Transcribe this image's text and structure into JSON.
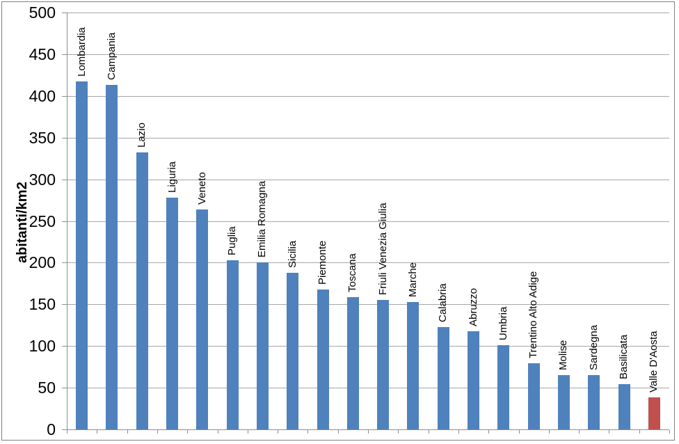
{
  "chart_data": {
    "type": "bar",
    "title": "",
    "xlabel": "",
    "ylabel": "abitanti/km2",
    "ylim": [
      0,
      500
    ],
    "ytick_step": 50,
    "yticks": [
      0,
      50,
      100,
      150,
      200,
      250,
      300,
      350,
      400,
      450,
      500
    ],
    "grid": true,
    "legend_position": "none",
    "categories": [
      "Lombardia",
      "Campania",
      "Lazio",
      "Liguria",
      "Veneto",
      "Puglia",
      "Emilia Romagna",
      "Sicilia",
      "Piemonte",
      "Toscana",
      "Friuli Venezia Giulia",
      "Marche",
      "Calabria",
      "Abruzzo",
      "Umbria",
      "Trentino Alto Adige",
      "Molise",
      "Sardegna",
      "Basilicata",
      "Valle D'Aosta"
    ],
    "values": [
      417,
      413,
      332,
      278,
      264,
      203,
      200,
      188,
      168,
      159,
      155,
      153,
      123,
      118,
      101,
      79,
      65,
      65,
      54,
      38
    ],
    "bar_colors": [
      "#4F81BD",
      "#4F81BD",
      "#4F81BD",
      "#4F81BD",
      "#4F81BD",
      "#4F81BD",
      "#4F81BD",
      "#4F81BD",
      "#4F81BD",
      "#4F81BD",
      "#4F81BD",
      "#4F81BD",
      "#4F81BD",
      "#4F81BD",
      "#4F81BD",
      "#4F81BD",
      "#4F81BD",
      "#4F81BD",
      "#4F81BD",
      "#C0504D"
    ],
    "colors": {
      "bar_default": "#4F81BD",
      "bar_highlight": "#C0504D",
      "gridline": "#A6A6A6",
      "axis": "#8C8C8C",
      "frame_border": "#7F7F7F",
      "text": "#000000"
    }
  }
}
